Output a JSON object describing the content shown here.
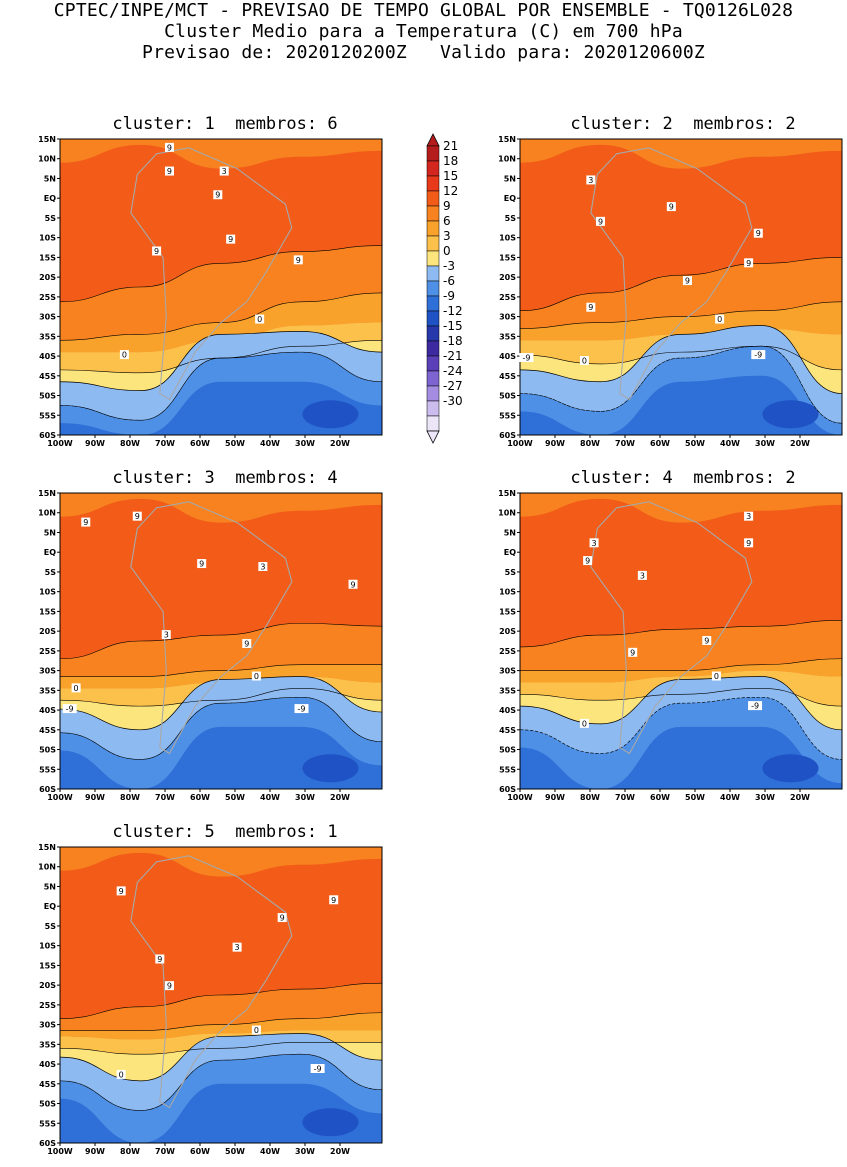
{
  "header": {
    "line1": "CPTEC/INPE/MCT - PREVISAO DE TEMPO GLOBAL POR ENSEMBLE - TQ0126L028",
    "line2": "Cluster Medio para a Temperatura (C) em 700 hPa",
    "line3": "Previsao de: 2020120200Z   Valido para: 2020120600Z"
  },
  "panels": [
    {
      "title": "cluster: 1  membros: 6",
      "contour_labels": [
        "9",
        "9",
        "3",
        "9",
        "9",
        "9",
        "9",
        "0",
        "0"
      ]
    },
    {
      "title": "cluster: 2  membros: 2",
      "contour_labels": [
        "3",
        "9",
        "9",
        "9",
        "9",
        "9",
        "9",
        "0",
        "-9",
        "0",
        "-9"
      ]
    },
    {
      "title": "cluster: 3  membros: 4",
      "contour_labels": [
        "9",
        "9",
        "9",
        "3",
        "9",
        "3",
        "9",
        "0",
        "0",
        "-9",
        "-9"
      ]
    },
    {
      "title": "cluster: 4  membros: 2",
      "contour_labels": [
        "3",
        "9",
        "3",
        "9",
        "3",
        "9",
        "9",
        "0",
        "0",
        "-9"
      ]
    },
    {
      "title": "cluster: 5  membros: 1",
      "contour_labels": [
        "9",
        "9",
        "9",
        "3",
        "9",
        "9",
        "0",
        "0",
        "-9"
      ]
    }
  ],
  "axes": {
    "lat_labels": [
      "15N",
      "10N",
      "5N",
      "EQ",
      "5S",
      "10S",
      "15S",
      "20S",
      "25S",
      "30S",
      "35S",
      "40S",
      "45S",
      "50S",
      "55S",
      "60S"
    ],
    "lon_labels": [
      "100W",
      "90W",
      "80W",
      "70W",
      "60W",
      "50W",
      "40W",
      "30W",
      "20W"
    ]
  },
  "colorbar": {
    "labels": [
      "21",
      "18",
      "15",
      "12",
      "9",
      "6",
      "3",
      "0",
      "-3",
      "-6",
      "-9",
      "-12",
      "-15",
      "-18",
      "-21",
      "-24",
      "-27",
      "-30"
    ],
    "colors": [
      "#b51d1d",
      "#d3261e",
      "#e8391a",
      "#f25c18",
      "#f7821f",
      "#f9a22b",
      "#fbc14b",
      "#fde57d",
      "#8ebaf2",
      "#4d90e5",
      "#2f6fd8",
      "#1f52c4",
      "#2738aa",
      "#3d2aa0",
      "#5a3fb8",
      "#7d64d0",
      "#a48de0",
      "#cbbced",
      "#ece6f8"
    ],
    "top_color": "#b51d1d",
    "bottom_color": "#ece6f8"
  },
  "palette": {
    "warm12": "#f25c18",
    "warm9": "#f7821f",
    "warm6": "#f9a22b",
    "warm3": "#fbc14b",
    "warm0": "#fde57d",
    "cold3": "#8ebaf2",
    "cold6": "#4d90e5",
    "cold9": "#2f6fd8",
    "cold12": "#1f52c4",
    "land": "#a8a8a8"
  }
}
